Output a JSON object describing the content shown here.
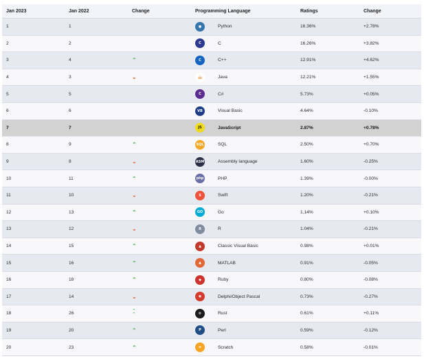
{
  "headers": {
    "jan2023": "Jan 2023",
    "jan2022": "Jan 2022",
    "change": "Change",
    "language": "Programming Language",
    "ratings": "Ratings",
    "change2": "Change"
  },
  "rows": [
    {
      "r23": "1",
      "r22": "1",
      "trend": "",
      "lang": "Python",
      "rating": "16.36%",
      "delta": "+2.78%",
      "icon": "python-icon",
      "color": "#3776ab"
    },
    {
      "r23": "2",
      "r22": "2",
      "trend": "",
      "lang": "C",
      "rating": "16.26%",
      "delta": "+3.82%",
      "icon": "c-icon",
      "color": "#2c3a8f"
    },
    {
      "r23": "3",
      "r22": "4",
      "trend": "up",
      "lang": "C++",
      "rating": "12.91%",
      "delta": "+4.62%",
      "icon": "cpp-icon",
      "color": "#1565c0"
    },
    {
      "r23": "4",
      "r22": "3",
      "trend": "down",
      "lang": "Java",
      "rating": "12.21%",
      "delta": "+1.55%",
      "icon": "java-icon",
      "color": "#e76f00"
    },
    {
      "r23": "5",
      "r22": "5",
      "trend": "",
      "lang": "C#",
      "rating": "5.73%",
      "delta": "+0.05%",
      "icon": "csharp-icon",
      "color": "#5c2d91"
    },
    {
      "r23": "6",
      "r22": "6",
      "trend": "",
      "lang": "Visual Basic",
      "rating": "4.64%",
      "delta": "-0.10%",
      "icon": "visual-basic-icon",
      "color": "#1e3f87"
    },
    {
      "r23": "7",
      "r22": "7",
      "trend": "",
      "lang": "JavaScript",
      "rating": "2.87%",
      "delta": "+0.78%",
      "icon": "javascript-icon",
      "color": "#f0db1a"
    },
    {
      "r23": "8",
      "r22": "9",
      "trend": "up",
      "lang": "SQL",
      "rating": "2.50%",
      "delta": "+0.70%",
      "icon": "sql-icon",
      "color": "#f5a623"
    },
    {
      "r23": "9",
      "r22": "8",
      "trend": "down",
      "lang": "Assembly language",
      "rating": "1.60%",
      "delta": "-0.25%",
      "icon": "assembly-icon",
      "color": "#2b2f45"
    },
    {
      "r23": "10",
      "r22": "11",
      "trend": "up",
      "lang": "PHP",
      "rating": "1.39%",
      "delta": "-0.00%",
      "icon": "php-icon",
      "color": "#6b6fa8"
    },
    {
      "r23": "11",
      "r22": "10",
      "trend": "down",
      "lang": "Swift",
      "rating": "1.20%",
      "delta": "-0.21%",
      "icon": "swift-icon",
      "color": "#f05138"
    },
    {
      "r23": "12",
      "r22": "13",
      "trend": "up",
      "lang": "Go",
      "rating": "1.14%",
      "delta": "+0.10%",
      "icon": "go-icon",
      "color": "#00acd7"
    },
    {
      "r23": "13",
      "r22": "12",
      "trend": "down",
      "lang": "R",
      "rating": "1.04%",
      "delta": "-0.21%",
      "icon": "r-icon",
      "color": "#7f8c9d"
    },
    {
      "r23": "14",
      "r22": "15",
      "trend": "up",
      "lang": "Classic Visual Basic",
      "rating": "0.98%",
      "delta": "+0.01%",
      "icon": "classic-vb-icon",
      "color": "#c0392b"
    },
    {
      "r23": "15",
      "r22": "16",
      "trend": "up",
      "lang": "MATLAB",
      "rating": "0.91%",
      "delta": "-0.05%",
      "icon": "matlab-icon",
      "color": "#e16737"
    },
    {
      "r23": "16",
      "r22": "18",
      "trend": "up",
      "lang": "Ruby",
      "rating": "0.80%",
      "delta": "-0.08%",
      "icon": "ruby-icon",
      "color": "#cc342d"
    },
    {
      "r23": "17",
      "r22": "14",
      "trend": "down",
      "lang": "Delphi/Object Pascal",
      "rating": "0.73%",
      "delta": "-0.27%",
      "icon": "delphi-icon",
      "color": "#d33b2c"
    },
    {
      "r23": "18",
      "r22": "26",
      "trend": "doubleup",
      "lang": "Rust",
      "rating": "0.61%",
      "delta": "+0.11%",
      "icon": "rust-icon",
      "color": "#1b1b1b"
    },
    {
      "r23": "19",
      "r22": "20",
      "trend": "up",
      "lang": "Perl",
      "rating": "0.59%",
      "delta": "-0.12%",
      "icon": "perl-icon",
      "color": "#1f4f84"
    },
    {
      "r23": "20",
      "r22": "23",
      "trend": "up",
      "lang": "Scratch",
      "rating": "0.58%",
      "delta": "-0.01%",
      "icon": "scratch-icon",
      "color": "#f7a523"
    }
  ],
  "iconGlyphs": {
    "python-icon": "●",
    "c-icon": "C",
    "cpp-icon": "C",
    "java-icon": "☕",
    "csharp-icon": "C",
    "visual-basic-icon": "VB",
    "javascript-icon": "JS",
    "sql-icon": "SQL",
    "assembly-icon": "ASM",
    "php-icon": "php",
    "swift-icon": "S",
    "go-icon": "GO",
    "r-icon": "R",
    "classic-vb-icon": "▲",
    "matlab-icon": "▲",
    "ruby-icon": "◆",
    "delphi-icon": "◉",
    "rust-icon": "⚙",
    "perl-icon": "P",
    "scratch-icon": "≡"
  }
}
